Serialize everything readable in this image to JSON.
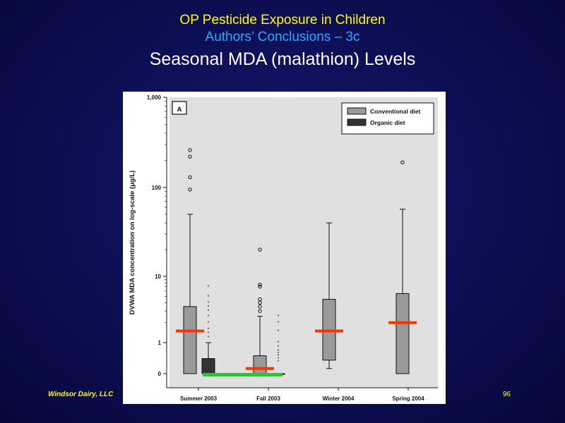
{
  "slide": {
    "title_line1": "OP Pesticide Exposure in Children",
    "title_line2": "Authors’ Conclusions – 3c",
    "title_line3": "Seasonal MDA (malathion) Levels",
    "footer_left": "Windsor Dairy, LLC",
    "page_number": "96"
  },
  "colors": {
    "title1": "#ffff00",
    "title2": "#2ea8ff",
    "title3": "#ffffff",
    "conventional": "#9a9a9a",
    "organic": "#333333",
    "median_marker": "#ff3300",
    "organic_period_marker": "#22cc22"
  },
  "chart_data": {
    "type": "box",
    "panel_label": "A",
    "ylabel": "DVWA MDA concentration on log-scale (μg/L)",
    "y_scale": "log",
    "y_ticks": [
      "1,000",
      "100",
      "10",
      "1",
      "0"
    ],
    "categories": [
      "Summer 2003",
      "Fall 2003",
      "Winter 2004",
      "Spring 2004"
    ],
    "legend": [
      "Conventional diet",
      "Organic diet"
    ],
    "legend_position": "top-right",
    "series": [
      {
        "name": "Conventional diet",
        "boxes": [
          {
            "category": "Summer 2003",
            "min": 0,
            "q1": 0,
            "median": 1.5,
            "q3": 3.5,
            "max": 50,
            "outliers": [
              95,
              130,
              220,
              260
            ]
          },
          {
            "category": "Fall 2003",
            "min": 0,
            "q1": 0,
            "median": 0.05,
            "q3": 0.4,
            "max": 2.5,
            "outliers": [
              3,
              3.5,
              4,
              4.5,
              7,
              7.5,
              20
            ]
          },
          {
            "category": "Winter 2004",
            "min": 0.05,
            "q1": 0.25,
            "median": 1.5,
            "q3": 4.5,
            "max": 40,
            "outliers": []
          },
          {
            "category": "Spring 2004",
            "min": 0,
            "q1": 0,
            "median": 2,
            "q3": 5.5,
            "max": 57,
            "outliers": [
              190
            ]
          }
        ]
      },
      {
        "name": "Organic diet",
        "boxes": [
          {
            "category": "Summer 2003",
            "min": 0,
            "q1": 0,
            "median": 0,
            "q3": 0.3,
            "max": 1,
            "outliers": [
              1.2,
              1.4,
              1.6,
              2,
              2.5,
              3,
              3.5,
              4,
              5,
              7
            ]
          },
          {
            "category": "Fall 2003",
            "min": 0,
            "q1": 0,
            "median": 0,
            "q3": 0,
            "max": 0,
            "outliers": [
              0.2,
              0.3,
              0.4,
              0.5,
              0.6,
              0.8,
              1,
              1.5,
              2,
              2.5
            ]
          }
        ]
      }
    ],
    "annotations": [
      {
        "type": "median_bar",
        "categories": [
          "Summer 2003",
          "Fall 2003",
          "Winter 2004",
          "Spring 2004"
        ]
      },
      {
        "type": "organic_diet_period_bar",
        "categories": [
          "Summer 2003",
          "Fall 2003"
        ]
      }
    ]
  }
}
